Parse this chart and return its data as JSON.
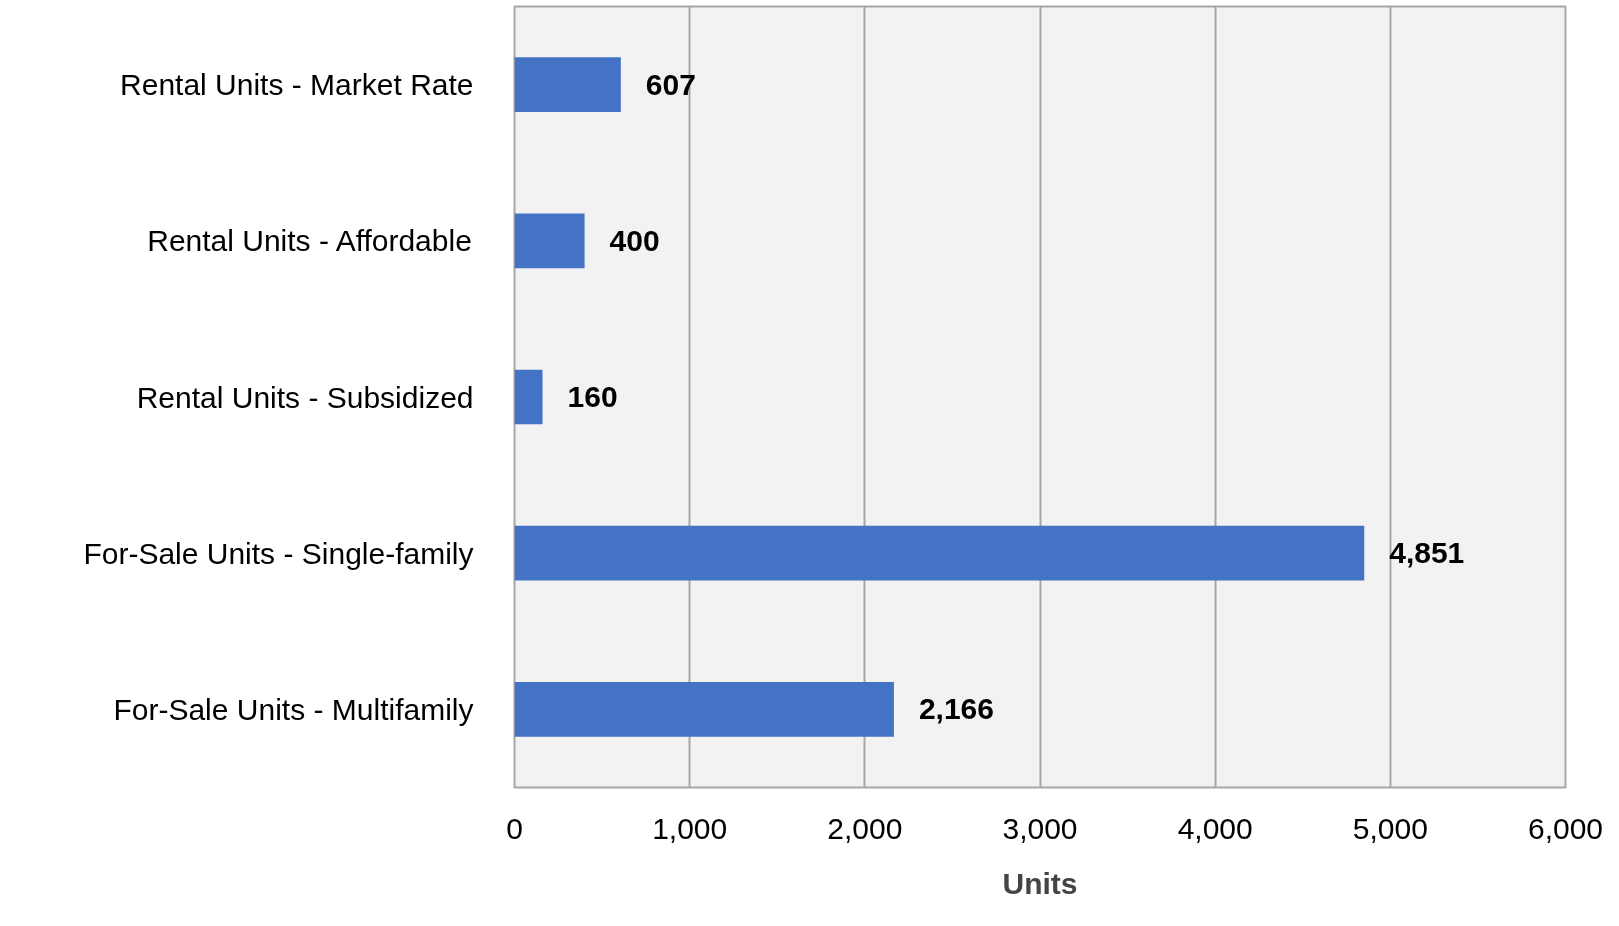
{
  "chart_data": {
    "type": "bar",
    "orientation": "horizontal",
    "xlabel": "Units",
    "categories": [
      "Rental Units - Market Rate",
      "Rental Units - Affordable",
      "Rental Units - Subsidized",
      "For-Sale Units - Single-family",
      "For-Sale Units - Multifamily"
    ],
    "values": [
      607,
      400,
      160,
      4851,
      2166
    ],
    "value_labels": [
      "607",
      "400",
      "160",
      "4,851",
      "2,166"
    ],
    "color": "#4472c4",
    "xlim": [
      0,
      6000
    ],
    "xticks": [
      0,
      {
        "value": 1000,
        "label": "1,000"
      },
      {
        "value": 2000,
        "label": "2,000"
      },
      {
        "value": 3000,
        "label": "3,000"
      },
      {
        "value": 4000,
        "label": "4,000"
      },
      {
        "value": 5000,
        "label": "5,000"
      },
      {
        "value": 6000,
        "label": "6,000"
      }
    ],
    "grid": "x"
  }
}
